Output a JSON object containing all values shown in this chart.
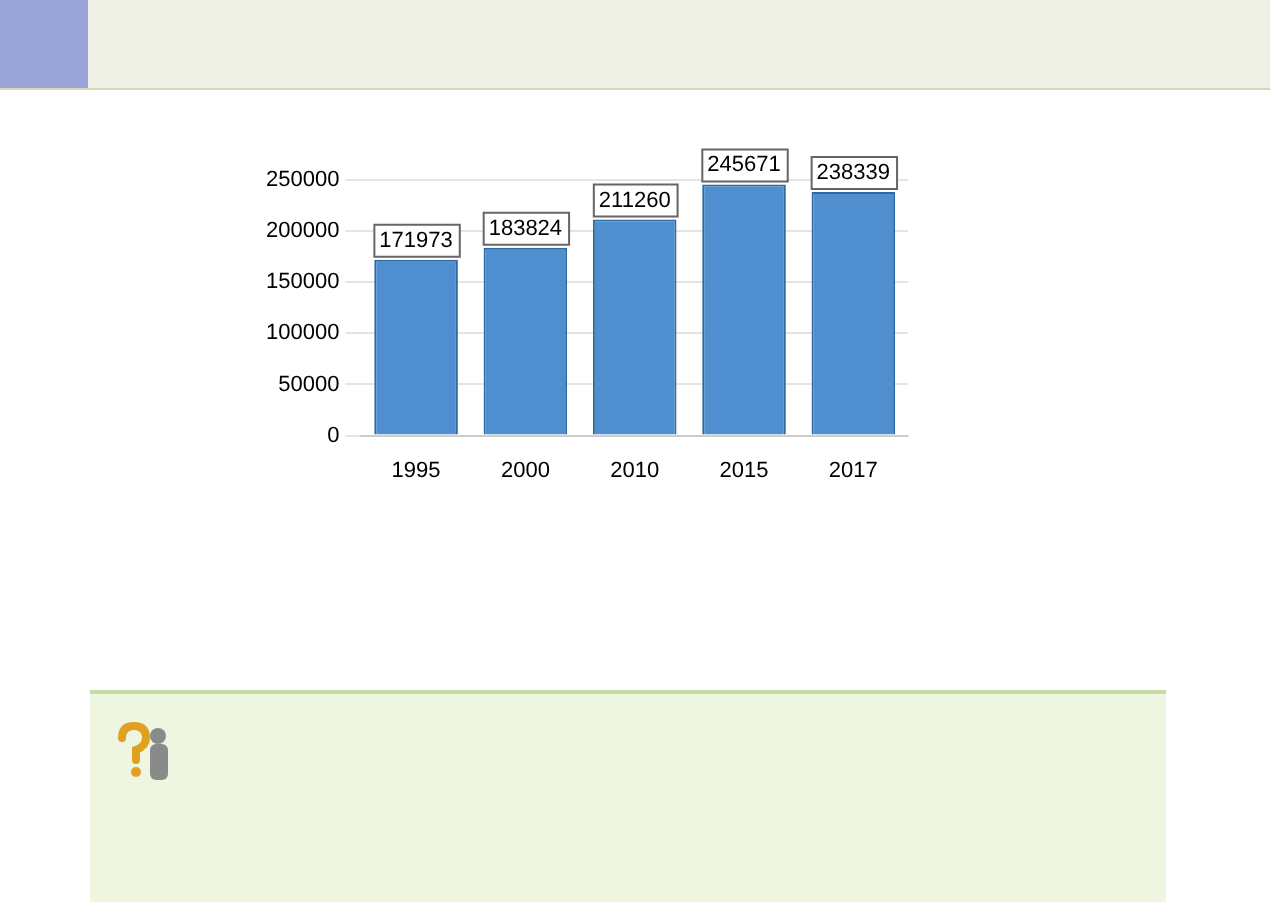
{
  "chart_data": {
    "type": "bar",
    "categories": [
      "1995",
      "2000",
      "2010",
      "2015",
      "2017"
    ],
    "values": [
      171973,
      183824,
      211260,
      245671,
      238339
    ],
    "color": "#4f8fcf",
    "ylim": [
      0,
      250000
    ],
    "yticks": [
      0,
      50000,
      100000,
      150000,
      200000,
      250000
    ],
    "grid": "y",
    "data_labels": true,
    "legend": false
  }
}
